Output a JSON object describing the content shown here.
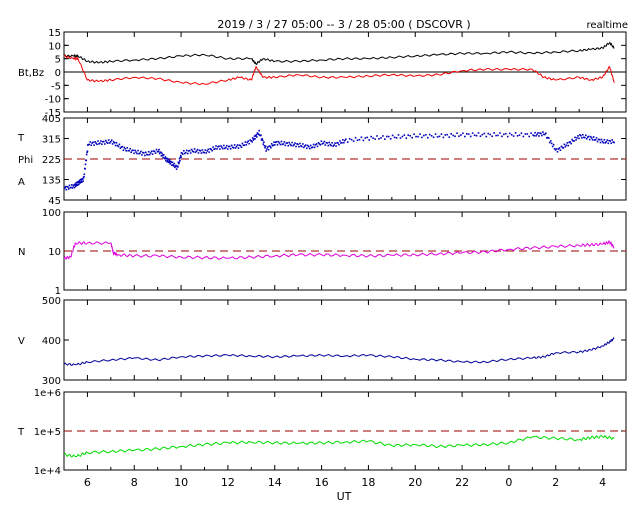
{
  "header": {
    "title": "2019 / 3 / 27   05:00 -- 3 / 28   05:00 ( DSCOVR )",
    "mode": "realtime"
  },
  "x_axis": {
    "label": "UT",
    "ticks": [
      6,
      8,
      10,
      12,
      14,
      16,
      18,
      20,
      22,
      0,
      2,
      4
    ],
    "range_hours": [
      5.0,
      29.0
    ]
  },
  "chart_data": [
    {
      "type": "line",
      "panel": "magnetic_field",
      "ylabel": "Bt,Bz",
      "ylim": [
        -15,
        15
      ],
      "yticks": [
        15,
        10,
        5,
        0,
        -5,
        -10,
        -15
      ],
      "zero_line": 0,
      "series": [
        {
          "name": "Bt",
          "color": "#000000",
          "x": [
            5.0,
            5.4,
            5.6,
            6.0,
            6.5,
            7.0,
            8.0,
            9.0,
            10.0,
            11.0,
            12.0,
            13.0,
            13.2,
            13.5,
            14.0,
            15.0,
            16.0,
            17.0,
            18.0,
            19.0,
            20.0,
            21.0,
            22.0,
            23.0,
            24.0,
            25.0,
            26.0,
            27.0,
            27.5,
            28.0,
            28.3,
            28.5
          ],
          "y": [
            6,
            6,
            6,
            4,
            3.5,
            4,
            4.5,
            5,
            6,
            6.5,
            5,
            5,
            3,
            5,
            4,
            4,
            4.5,
            5,
            5,
            5.5,
            6,
            6.5,
            7,
            7,
            7.5,
            7,
            7.5,
            8,
            8.5,
            9,
            11,
            9
          ]
        },
        {
          "name": "Bz",
          "color": "#ee0000",
          "x": [
            5.0,
            5.4,
            5.6,
            6.0,
            6.5,
            7.0,
            8.0,
            9.0,
            10.0,
            11.0,
            12.0,
            12.5,
            13.0,
            13.2,
            13.5,
            14.0,
            15.0,
            16.0,
            17.0,
            18.0,
            19.0,
            20.0,
            21.0,
            22.0,
            23.0,
            24.0,
            25.0,
            25.5,
            26.0,
            27.0,
            27.5,
            28.0,
            28.3,
            28.5
          ],
          "y": [
            6,
            5,
            5,
            -3,
            -3.5,
            -3,
            -2,
            -2.5,
            -4,
            -4.5,
            -3,
            -2,
            -3,
            2,
            -2,
            -2,
            -1,
            -2,
            -2,
            -1.5,
            -1,
            -1.5,
            -1,
            0.5,
            1,
            1,
            1,
            -2,
            -3,
            -2,
            -3,
            -2,
            2,
            -4
          ]
        }
      ]
    },
    {
      "type": "scatter",
      "panel": "phi_angle",
      "ylabel": "T\nPhi\nA",
      "ylim": [
        45,
        405
      ],
      "yticks": [
        405,
        315,
        225,
        135,
        45
      ],
      "reference_line": {
        "value": 225,
        "color": "#990000",
        "style": "dashed"
      },
      "series": [
        {
          "name": "Phi",
          "color": "#0000bb",
          "x": [
            5.0,
            5.4,
            5.6,
            5.8,
            6.0,
            6.5,
            7.0,
            7.5,
            8.0,
            8.5,
            9.0,
            9.3,
            9.5,
            9.8,
            10.0,
            10.5,
            11.0,
            11.5,
            12.0,
            12.5,
            13.0,
            13.3,
            13.6,
            14.0,
            14.5,
            15.0,
            15.5,
            16.0,
            16.5,
            17.0,
            18.0,
            19.0,
            20.0,
            21.0,
            22.0,
            23.0,
            24.0,
            25.0,
            25.5,
            26.0,
            26.5,
            27.0,
            27.5,
            28.0,
            28.5
          ],
          "y": [
            100,
            110,
            125,
            140,
            295,
            300,
            305,
            275,
            260,
            250,
            265,
            230,
            215,
            190,
            255,
            265,
            260,
            280,
            280,
            285,
            310,
            345,
            270,
            300,
            295,
            290,
            280,
            300,
            290,
            310,
            320,
            325,
            330,
            330,
            335,
            335,
            335,
            335,
            340,
            265,
            295,
            330,
            320,
            305,
            305
          ]
        }
      ]
    },
    {
      "type": "line",
      "panel": "density",
      "ylabel": "N",
      "yscale": "log",
      "ylim": [
        1,
        100
      ],
      "yticks": [
        100,
        10,
        1
      ],
      "reference_line": {
        "value": 10,
        "color": "#990000",
        "style": "dashed"
      },
      "series": [
        {
          "name": "N",
          "color": "#dd00dd",
          "x": [
            5.0,
            5.3,
            5.5,
            6.0,
            7.0,
            7.1,
            7.3,
            8.0,
            9.0,
            10.0,
            11.0,
            12.0,
            13.0,
            14.0,
            15.0,
            16.0,
            17.0,
            18.0,
            19.0,
            20.0,
            21.0,
            22.0,
            23.0,
            24.0,
            25.0,
            26.0,
            27.0,
            27.5,
            28.0,
            28.3,
            28.5
          ],
          "y": [
            6.5,
            7,
            16,
            16,
            16,
            9,
            8,
            7.5,
            7.5,
            7,
            6.8,
            6.5,
            7,
            7.5,
            8,
            8,
            7.8,
            7.5,
            7.8,
            8,
            8.5,
            9,
            9.5,
            11,
            12,
            13,
            14,
            14.5,
            15,
            17,
            12
          ]
        }
      ]
    },
    {
      "type": "line",
      "panel": "speed",
      "ylabel": "V",
      "ylim": [
        300,
        500
      ],
      "yticks": [
        500,
        400,
        300
      ],
      "series": [
        {
          "name": "V",
          "color": "#000099",
          "x": [
            5.0,
            5.5,
            6.0,
            7.0,
            8.0,
            9.0,
            10.0,
            11.0,
            12.0,
            13.0,
            14.0,
            15.0,
            16.0,
            17.0,
            18.0,
            19.0,
            20.0,
            21.0,
            22.0,
            23.0,
            24.0,
            25.0,
            25.5,
            26.0,
            27.0,
            27.5,
            28.0,
            28.3,
            28.5
          ],
          "y": [
            340,
            338,
            345,
            350,
            355,
            350,
            358,
            360,
            362,
            360,
            358,
            360,
            362,
            360,
            362,
            358,
            352,
            350,
            345,
            345,
            352,
            355,
            358,
            368,
            370,
            375,
            385,
            395,
            405
          ]
        }
      ]
    },
    {
      "type": "line",
      "panel": "temperature",
      "ylabel": "T",
      "yscale": "log",
      "ylim": [
        10000,
        1000000
      ],
      "yticks": [
        "1e+6",
        "1e+5",
        "1e+4"
      ],
      "reference_line": {
        "value": 100000,
        "color": "#990000",
        "style": "dashed"
      },
      "series": [
        {
          "name": "T",
          "color": "#00dd00",
          "x": [
            5.0,
            5.5,
            6.0,
            7.0,
            8.0,
            9.0,
            10.0,
            11.0,
            12.0,
            13.0,
            14.0,
            15.0,
            16.0,
            17.0,
            18.0,
            19.0,
            20.0,
            21.0,
            22.0,
            23.0,
            24.0,
            25.0,
            26.0,
            27.0,
            27.5,
            28.0,
            28.5
          ],
          "y": [
            25000,
            22000,
            28000,
            30000,
            32000,
            35000,
            40000,
            45000,
            50000,
            52000,
            50000,
            48000,
            50000,
            52000,
            55000,
            42000,
            45000,
            40000,
            43000,
            45000,
            50000,
            70000,
            65000,
            60000,
            68000,
            72000,
            65000
          ]
        }
      ]
    }
  ]
}
